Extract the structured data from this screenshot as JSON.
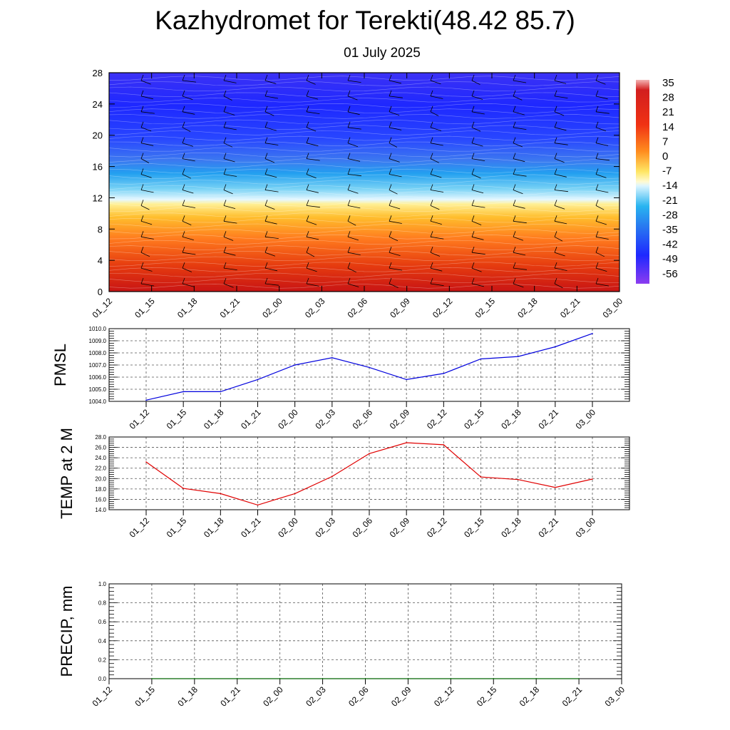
{
  "title": "Kazhydromet for Terekti(48.42 85.7)",
  "subtitle": "01 July 2025",
  "colors": {
    "pmsl_line": "#0000dd",
    "temp_line": "#e00000",
    "precip_line": "#006400",
    "grid": "#555555"
  },
  "chart_data": [
    {
      "type": "heatmap",
      "name": "temperature-cross-section",
      "title": "",
      "x_ticks": [
        "01_12",
        "01_15",
        "01_18",
        "01_21",
        "02_00",
        "02_03",
        "02_06",
        "02_09",
        "02_12",
        "02_15",
        "02_18",
        "02_21",
        "03_00"
      ],
      "y_ticks": [
        0,
        4,
        8,
        12,
        16,
        20,
        24,
        28
      ],
      "ylim": [
        0,
        28
      ],
      "colorbar_labels": [
        35,
        28,
        21,
        14,
        7,
        0,
        -7,
        -14,
        -21,
        -28,
        -35,
        -42,
        -49,
        -56
      ],
      "colormap_description": "blue (cold, aloft) to yellow/red (warm, near ground); freezing transition near level 12-13",
      "overlay": "wind barbs"
    },
    {
      "type": "line",
      "name": "pmsl",
      "ylabel": "PMSL",
      "categories": [
        "01_12",
        "01_15",
        "01_18",
        "01_21",
        "02_00",
        "02_03",
        "02_06",
        "02_09",
        "02_12",
        "02_15",
        "02_18",
        "02_21",
        "03_00"
      ],
      "series": [
        {
          "values": [
            1004.1,
            1004.8,
            1004.8,
            1005.8,
            1007.0,
            1007.6,
            1006.8,
            1005.8,
            1006.3,
            1007.5,
            1007.7,
            1008.5,
            1009.6
          ]
        }
      ],
      "ylim": [
        1004.0,
        1010.0
      ],
      "y_ticks": [
        "1004.0",
        "1005.0",
        "1006.0",
        "1007.0",
        "1008.0",
        "1009.0",
        "1010.0"
      ],
      "grid": true
    },
    {
      "type": "line",
      "name": "temp-2m",
      "ylabel": "TEMP at 2 M",
      "categories": [
        "01_12",
        "01_15",
        "01_18",
        "01_21",
        "02_00",
        "02_03",
        "02_06",
        "02_09",
        "02_12",
        "02_15",
        "02_18",
        "02_21",
        "03_00"
      ],
      "series": [
        {
          "values": [
            23.2,
            18.1,
            17.1,
            14.9,
            17.1,
            20.4,
            24.8,
            26.9,
            26.5,
            20.3,
            19.8,
            18.3,
            19.9
          ]
        }
      ],
      "ylim": [
        14.0,
        28.0
      ],
      "y_ticks": [
        "14.0",
        "16.0",
        "18.0",
        "20.0",
        "22.0",
        "24.0",
        "26.0",
        "28.0"
      ],
      "grid": true
    },
    {
      "type": "line",
      "name": "precip",
      "ylabel": "PRECIP, mm",
      "categories": [
        "01_15",
        "01_18",
        "01_21",
        "02_00",
        "02_03",
        "02_06",
        "02_09",
        "02_12",
        "02_15",
        "02_18",
        "02_21"
      ],
      "x_ticks": [
        "01_12",
        "01_15",
        "01_18",
        "01_21",
        "02_00",
        "02_03",
        "02_06",
        "02_09",
        "02_12",
        "02_15",
        "02_18",
        "02_21",
        "03_00"
      ],
      "series": [
        {
          "values": [
            0,
            0,
            0,
            0,
            0,
            0,
            0,
            0,
            0,
            0,
            0
          ]
        }
      ],
      "ylim": [
        0.0,
        1.0
      ],
      "y_ticks": [
        "0.0",
        "0.2",
        "0.4",
        "0.6",
        "0.8",
        "1.0"
      ],
      "grid": true
    }
  ]
}
